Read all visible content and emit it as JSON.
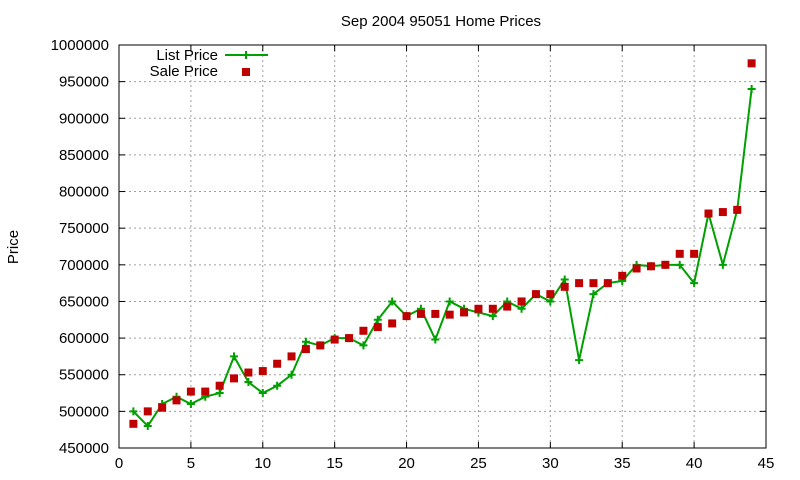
{
  "chart_data": {
    "type": "line",
    "title": "Sep 2004 95051 Home Prices",
    "xlabel": "",
    "ylabel": "Price",
    "xlim": [
      0,
      45
    ],
    "ylim": [
      450000,
      1000000
    ],
    "x_ticks": [
      0,
      5,
      10,
      15,
      20,
      25,
      30,
      35,
      40,
      45
    ],
    "y_ticks": [
      450000,
      500000,
      550000,
      600000,
      650000,
      700000,
      750000,
      800000,
      850000,
      900000,
      950000,
      1000000
    ],
    "grid": true,
    "legend_position": "top-left",
    "series": [
      {
        "name": "List Price",
        "style": "linespoints",
        "color": "#00a000",
        "x": [
          1,
          2,
          3,
          4,
          5,
          6,
          7,
          8,
          9,
          10,
          11,
          12,
          13,
          14,
          15,
          16,
          17,
          18,
          19,
          20,
          21,
          22,
          23,
          24,
          25,
          26,
          27,
          28,
          29,
          30,
          31,
          32,
          33,
          34,
          35,
          36,
          37,
          38,
          39,
          40,
          41,
          42,
          43,
          44
        ],
        "values": [
          500000,
          480000,
          510000,
          520000,
          510000,
          520000,
          525000,
          575000,
          540000,
          525000,
          535000,
          550000,
          595000,
          590000,
          600000,
          600000,
          590000,
          625000,
          650000,
          630000,
          640000,
          598000,
          650000,
          640000,
          635000,
          630000,
          650000,
          640000,
          660000,
          650000,
          680000,
          570000,
          660000,
          675000,
          678000,
          700000,
          698000,
          700000,
          700000,
          675000,
          770000,
          700000,
          775000,
          940000
        ]
      },
      {
        "name": "Sale Price",
        "style": "points",
        "color": "#c00000",
        "x": [
          1,
          2,
          3,
          4,
          5,
          6,
          7,
          8,
          9,
          10,
          11,
          12,
          13,
          14,
          15,
          16,
          17,
          18,
          19,
          20,
          21,
          22,
          23,
          24,
          25,
          26,
          27,
          28,
          29,
          30,
          31,
          32,
          33,
          34,
          35,
          36,
          37,
          38,
          39,
          40,
          41,
          42,
          43,
          44
        ],
        "values": [
          483000,
          500000,
          505000,
          515000,
          527000,
          527000,
          535000,
          545000,
          553000,
          555000,
          565000,
          575000,
          585000,
          590000,
          598000,
          600000,
          610000,
          615000,
          620000,
          630000,
          633000,
          633000,
          632000,
          635000,
          640000,
          640000,
          643000,
          650000,
          660000,
          660000,
          670000,
          675000,
          675000,
          675000,
          685000,
          695000,
          698000,
          700000,
          715000,
          715000,
          770000,
          772000,
          775000,
          975000
        ]
      }
    ]
  }
}
